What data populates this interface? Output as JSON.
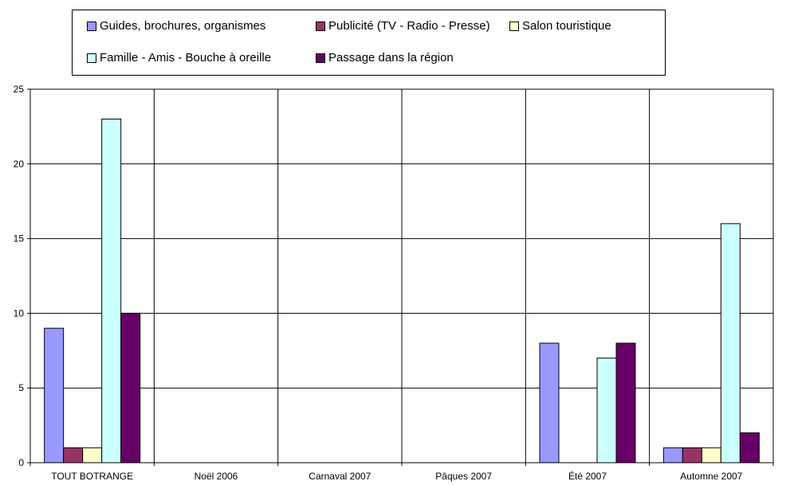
{
  "chart_data": {
    "type": "bar",
    "categories": [
      "TOUT BOTRANGE",
      "Noël 2006",
      "Carnaval 2007",
      "Pâques 2007",
      "Été 2007",
      "Automne 2007"
    ],
    "series": [
      {
        "name": "Guides, brochures, organismes",
        "color": "#9999ff",
        "values": [
          9,
          0,
          0,
          0,
          8,
          1
        ]
      },
      {
        "name": "Publicité (TV - Radio - Presse)",
        "color": "#993366",
        "values": [
          1,
          0,
          0,
          0,
          0,
          1
        ]
      },
      {
        "name": "Salon touristique",
        "color": "#ffffcc",
        "values": [
          1,
          0,
          0,
          0,
          0,
          1
        ]
      },
      {
        "name": "Famille - Amis - Bouche à oreille",
        "color": "#ccffff",
        "values": [
          23,
          0,
          0,
          0,
          7,
          16
        ]
      },
      {
        "name": "Passage dans la région",
        "color": "#660066",
        "values": [
          10,
          0,
          0,
          0,
          8,
          2
        ]
      }
    ],
    "yticks": [
      "0",
      "5",
      "10",
      "15",
      "20",
      "25"
    ],
    "ylim": [
      0,
      25
    ],
    "grid": true,
    "vertical_separators": true,
    "legend_position": "top"
  }
}
